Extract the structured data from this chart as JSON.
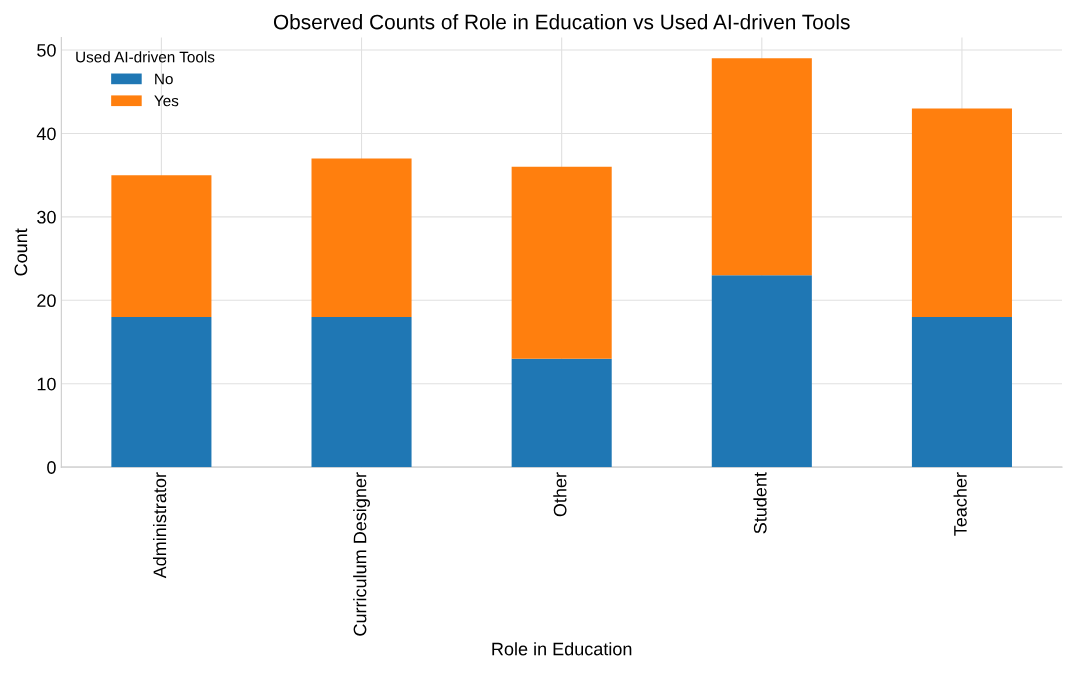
{
  "chart_data": {
    "type": "bar",
    "title": "Observed Counts of Role in Education vs Used AI-driven Tools",
    "xlabel": "Role in Education",
    "ylabel": "Count",
    "legend_title": "Used AI-driven Tools",
    "categories": [
      "Administrator",
      "Curriculum Designer",
      "Other",
      "Student",
      "Teacher"
    ],
    "series": [
      {
        "name": "No",
        "color": "#1f77b4",
        "values": [
          18,
          18,
          13,
          23,
          18
        ]
      },
      {
        "name": "Yes",
        "color": "#ff7f0e",
        "values": [
          17,
          19,
          23,
          26,
          25
        ]
      }
    ],
    "stacked": true,
    "ylim": [
      0,
      51.5
    ],
    "yticks": [
      0,
      10,
      20,
      30,
      40,
      50
    ],
    "grid": true,
    "legend": "top left"
  }
}
